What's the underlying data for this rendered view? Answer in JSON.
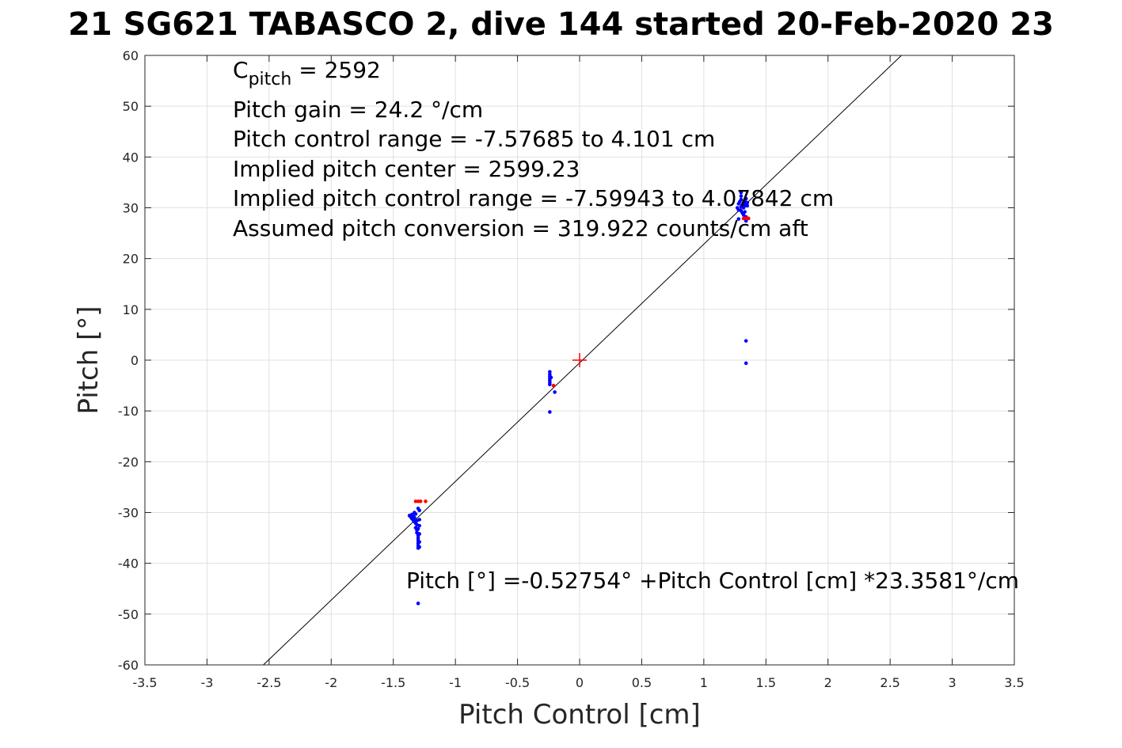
{
  "title": "21 SG621 TABASCO 2, dive 144 started 20-Feb-2020 23",
  "colors": {
    "background": "#ffffff",
    "grid": "#e0e0e0",
    "axis": "#262626",
    "fit_line": "#000000",
    "blue_points": "#0000ff",
    "red_points": "#ff0000",
    "center_marker": "#ff0000"
  },
  "chart_data": {
    "type": "scatter",
    "title": "21 SG621 TABASCO 2, dive 144 started 20-Feb-2020 23",
    "xlabel": "Pitch Control [cm]",
    "ylabel": "Pitch [°]",
    "xlim": [
      -3.5,
      3.5
    ],
    "ylim": [
      -60,
      60
    ],
    "grid": true,
    "x_ticks": [
      -3.5,
      -3,
      -2.5,
      -2,
      -1.5,
      -1,
      -0.5,
      0,
      0.5,
      1,
      1.5,
      2,
      2.5,
      3,
      3.5
    ],
    "x_tick_labels": [
      "-3.5",
      "-3",
      "-2.5",
      "-2",
      "-1.5",
      "-1",
      "-0.5",
      "0",
      "0.5",
      "1",
      "1.5",
      "2",
      "2.5",
      "3",
      "3.5"
    ],
    "y_ticks": [
      -60,
      -50,
      -40,
      -30,
      -20,
      -10,
      0,
      10,
      20,
      30,
      40,
      50,
      60
    ],
    "y_tick_labels": [
      "-60",
      "-50",
      "-40",
      "-30",
      "-20",
      "-10",
      "0",
      "10",
      "20",
      "30",
      "40",
      "50",
      "60"
    ],
    "fit_line": {
      "intercept": -0.52754,
      "slope": 23.3581
    },
    "center_marker": {
      "x": 0,
      "y": 0
    },
    "series": [
      {
        "color": "#0000ff",
        "points": [
          [
            -1.37,
            -30.6
          ],
          [
            -1.36,
            -30.9
          ],
          [
            -1.35,
            -31.2
          ],
          [
            -1.35,
            -30.4
          ],
          [
            -1.34,
            -31.5
          ],
          [
            -1.34,
            -30.8
          ],
          [
            -1.33,
            -31.8
          ],
          [
            -1.33,
            -31.0
          ],
          [
            -1.32,
            -32.1
          ],
          [
            -1.32,
            -30.3
          ],
          [
            -1.32,
            -33.0
          ],
          [
            -1.31,
            -32.4
          ],
          [
            -1.31,
            -33.5
          ],
          [
            -1.31,
            -34.0
          ],
          [
            -1.31,
            -31.6
          ],
          [
            -1.3,
            -34.5
          ],
          [
            -1.3,
            -35.0
          ],
          [
            -1.3,
            -35.5
          ],
          [
            -1.3,
            -36.0
          ],
          [
            -1.3,
            -36.5
          ],
          [
            -1.3,
            -37.0
          ],
          [
            -1.3,
            -33.2
          ],
          [
            -1.29,
            -31.4
          ],
          [
            -1.29,
            -32.6
          ],
          [
            -1.29,
            -34.2
          ],
          [
            -1.29,
            -35.8
          ],
          [
            -1.29,
            -36.8
          ],
          [
            -1.29,
            -29.6
          ],
          [
            -1.3,
            -29.2
          ],
          [
            -1.33,
            -30.0
          ],
          [
            -1.3,
            -47.9
          ],
          [
            -0.24,
            -2.3
          ],
          [
            -0.24,
            -2.8
          ],
          [
            -0.24,
            -3.2
          ],
          [
            -0.24,
            -3.6
          ],
          [
            -0.24,
            -4.0
          ],
          [
            -0.24,
            -4.4
          ],
          [
            -0.24,
            -4.8
          ],
          [
            -0.23,
            -3.4
          ],
          [
            -0.24,
            -10.2
          ],
          [
            -0.2,
            -6.3
          ],
          [
            1.27,
            30.0
          ],
          [
            1.28,
            30.8
          ],
          [
            1.28,
            29.6
          ],
          [
            1.29,
            31.2
          ],
          [
            1.3,
            30.2
          ],
          [
            1.3,
            29.4
          ],
          [
            1.3,
            31.6
          ],
          [
            1.31,
            30.6
          ],
          [
            1.31,
            29.0
          ],
          [
            1.32,
            31.0
          ],
          [
            1.32,
            30.0
          ],
          [
            1.32,
            28.6
          ],
          [
            1.33,
            31.4
          ],
          [
            1.33,
            30.4
          ],
          [
            1.33,
            29.2
          ],
          [
            1.34,
            30.8
          ],
          [
            1.34,
            31.8
          ],
          [
            1.34,
            28.2
          ],
          [
            1.35,
            30.4
          ],
          [
            1.35,
            31.0
          ],
          [
            1.3,
            32.3
          ],
          [
            1.3,
            33.0
          ],
          [
            1.34,
            27.4
          ],
          [
            1.28,
            27.8
          ],
          [
            1.34,
            3.8
          ],
          [
            1.34,
            -0.6
          ]
        ]
      },
      {
        "color": "#ff0000",
        "points": [
          [
            -1.32,
            -27.8
          ],
          [
            -1.3,
            -27.8
          ],
          [
            -1.28,
            -27.8
          ],
          [
            -1.24,
            -27.8
          ],
          [
            -0.21,
            -5.0
          ],
          [
            1.32,
            27.9
          ],
          [
            1.34,
            27.9
          ],
          [
            1.36,
            27.9
          ]
        ]
      }
    ],
    "annotations": {
      "cpitch_main": "C",
      "cpitch_sub": "pitch",
      "cpitch_value": " = 2592",
      "lines": [
        "Pitch gain = 24.2 °/cm",
        "Pitch control range = -7.57685 to 4.101 cm",
        "Implied pitch center = 2599.23",
        "Implied pitch control range = -7.59943 to 4.07842 cm",
        "Assumed pitch conversion = 319.922 counts/cm aft"
      ],
      "fit_equation": "Pitch [°] =-0.52754° +Pitch Control [cm] *23.3581°/cm"
    }
  }
}
